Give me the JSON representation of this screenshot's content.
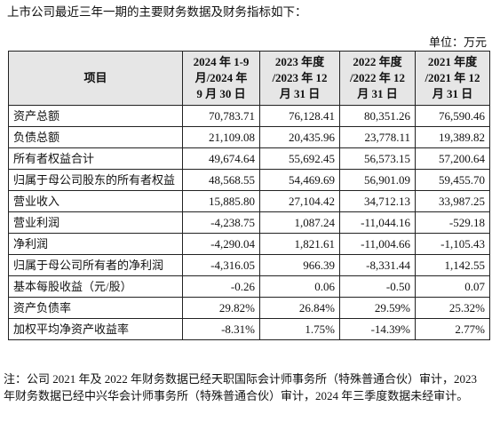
{
  "intro": "上市公司最近三年一期的主要财务数据及财务指标如下：",
  "unit": "单位：万元",
  "table": {
    "header": [
      "项目",
      "2024 年 1-9 月/2024 年 9 月 30 日",
      "2023 年度 /2023 年 12 月 31 日",
      "2022 年度 /2022 年 12 月 31 日",
      "2021 年度 /2021 年 12 月 31 日"
    ],
    "rows": [
      [
        "资产总额",
        "70,783.71",
        "76,128.41",
        "80,351.26",
        "76,590.46"
      ],
      [
        "负债总额",
        "21,109.08",
        "20,435.96",
        "23,778.11",
        "19,389.82"
      ],
      [
        "所有者权益合计",
        "49,674.64",
        "55,692.45",
        "56,573.15",
        "57,200.64"
      ],
      [
        "归属于母公司股东的所有者权益",
        "48,568.55",
        "54,469.69",
        "56,901.09",
        "59,455.70"
      ],
      [
        "营业收入",
        "15,885.80",
        "27,104.42",
        "34,712.13",
        "33,987.25"
      ],
      [
        "营业利润",
        "-4,238.75",
        "1,087.24",
        "-11,044.16",
        "-529.18"
      ],
      [
        "净利润",
        "-4,290.04",
        "1,821.61",
        "-11,004.66",
        "-1,105.43"
      ],
      [
        "归属于母公司所有者的净利润",
        "-4,316.05",
        "966.39",
        "-8,331.44",
        "1,142.55"
      ],
      [
        "基本每股收益（元/股）",
        "-0.26",
        "0.06",
        "-0.50",
        "0.07"
      ],
      [
        "资产负债率",
        "29.82%",
        "26.84%",
        "29.59%",
        "25.32%"
      ],
      [
        "加权平均净资产收益率",
        "-8.31%",
        "1.75%",
        "-14.39%",
        "2.77%"
      ]
    ]
  },
  "note": "注：公司 2021 年及 2022 年财务数据已经天职国际会计师事务所（特殊普通合伙）审计，2023 年财务数据已经中兴华会计师事务所（特殊普通合伙）审计，2024 年三季度数据未经审计。"
}
